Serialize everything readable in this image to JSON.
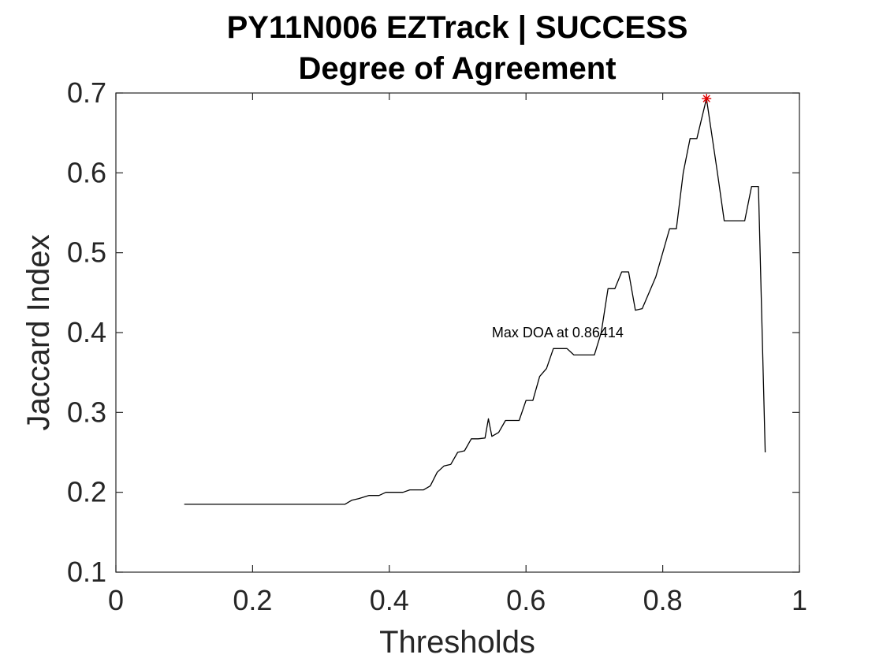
{
  "chart_data": {
    "type": "line",
    "title": "PY11N006 EZTrack | SUCCESS",
    "subtitle": "Degree of Agreement",
    "xlabel": "Thresholds",
    "ylabel": "Jaccard Index",
    "xlim": [
      0,
      1
    ],
    "ylim": [
      0.1,
      0.7
    ],
    "xticks": [
      0,
      0.2,
      0.4,
      0.6,
      0.8,
      1
    ],
    "xtick_labels": [
      "0",
      "0.2",
      "0.4",
      "0.6",
      "0.8",
      "1"
    ],
    "yticks": [
      0.1,
      0.2,
      0.3,
      0.4,
      0.5,
      0.6,
      0.7
    ],
    "ytick_labels": [
      "0.1",
      "0.2",
      "0.3",
      "0.4",
      "0.5",
      "0.6",
      "0.7"
    ],
    "grid": false,
    "line_color": "#000000",
    "marker_color": "#e00000",
    "series": [
      {
        "x": [
          0.1,
          0.2,
          0.3,
          0.335,
          0.345,
          0.355,
          0.37,
          0.385,
          0.395,
          0.41,
          0.42,
          0.43,
          0.44,
          0.45,
          0.46,
          0.47,
          0.48,
          0.49,
          0.5,
          0.51,
          0.52,
          0.53,
          0.54,
          0.545,
          0.55,
          0.56,
          0.57,
          0.58,
          0.59,
          0.6,
          0.61,
          0.62,
          0.63,
          0.64,
          0.65,
          0.66,
          0.67,
          0.68,
          0.69,
          0.7,
          0.71,
          0.72,
          0.73,
          0.74,
          0.75,
          0.76,
          0.77,
          0.78,
          0.79,
          0.8,
          0.81,
          0.82,
          0.83,
          0.84,
          0.85,
          0.864,
          0.88,
          0.89,
          0.9,
          0.91,
          0.92,
          0.93,
          0.94,
          0.95
        ],
        "y": [
          0.185,
          0.185,
          0.185,
          0.185,
          0.19,
          0.192,
          0.196,
          0.196,
          0.2,
          0.2,
          0.2,
          0.203,
          0.203,
          0.203,
          0.208,
          0.225,
          0.233,
          0.235,
          0.25,
          0.252,
          0.267,
          0.267,
          0.268,
          0.292,
          0.27,
          0.275,
          0.29,
          0.29,
          0.29,
          0.315,
          0.315,
          0.345,
          0.355,
          0.38,
          0.38,
          0.38,
          0.372,
          0.372,
          0.372,
          0.372,
          0.4,
          0.455,
          0.455,
          0.476,
          0.476,
          0.428,
          0.43,
          0.45,
          0.47,
          0.5,
          0.53,
          0.53,
          0.6,
          0.643,
          0.643,
          0.693,
          0.6,
          0.54,
          0.54,
          0.54,
          0.54,
          0.583,
          0.583,
          0.25
        ]
      }
    ],
    "max_point": {
      "x": 0.86414,
      "y": 0.693
    },
    "annotation": {
      "text": "Max DOA at 0.86414",
      "x": 0.55,
      "y": 0.4
    }
  }
}
